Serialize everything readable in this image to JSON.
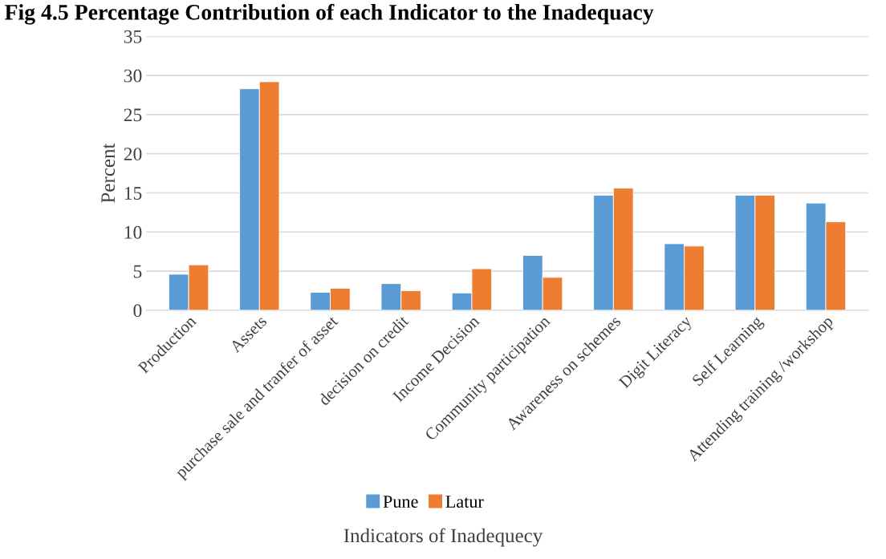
{
  "chart_data": {
    "type": "bar",
    "title": "Fig 4.5 Percentage Contribution of each Indicator to the Inadequacy",
    "xlabel": "Indicators of Inadequecy",
    "ylabel": "Percent",
    "categories": [
      "Production",
      "Assets",
      "purchase sale and tranfer of asset",
      "decision on credit",
      "Income Decision",
      "Community participation",
      "Awareness on schemes",
      "Digit Literacy",
      "Self Learning",
      "Attending training /workshop"
    ],
    "series": [
      {
        "name": "Pune",
        "color": "#5b9bd5",
        "values": [
          4.6,
          28.3,
          2.3,
          3.4,
          2.2,
          7.0,
          14.7,
          8.5,
          14.7,
          13.7
        ]
      },
      {
        "name": "Latur",
        "color": "#ed7d31",
        "values": [
          5.8,
          29.2,
          2.8,
          2.5,
          5.3,
          4.2,
          15.6,
          8.2,
          14.7,
          11.3
        ]
      }
    ],
    "ylim": [
      0,
      35
    ],
    "yticks": [
      0,
      5,
      10,
      15,
      20,
      25,
      30,
      35
    ],
    "grid": "y",
    "legend": "bottom"
  }
}
